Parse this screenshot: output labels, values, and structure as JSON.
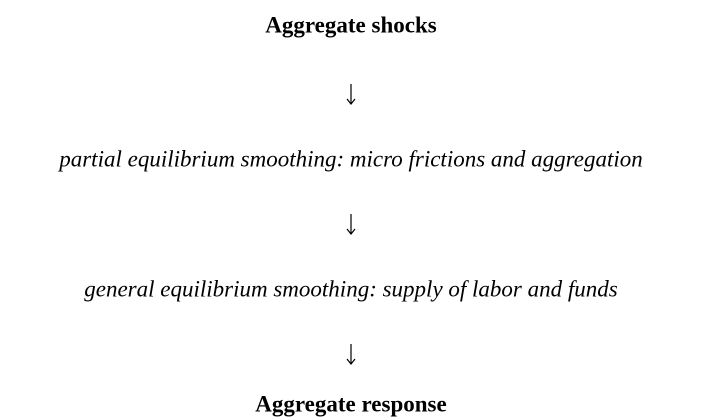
{
  "nodes": [
    {
      "label": "Aggregate shocks"
    },
    {
      "label": "partial equilibrium smoothing: micro frictions and aggregation"
    },
    {
      "label": "general equilibrium smoothing: supply of labor and funds"
    },
    {
      "label": "Aggregate response"
    }
  ]
}
